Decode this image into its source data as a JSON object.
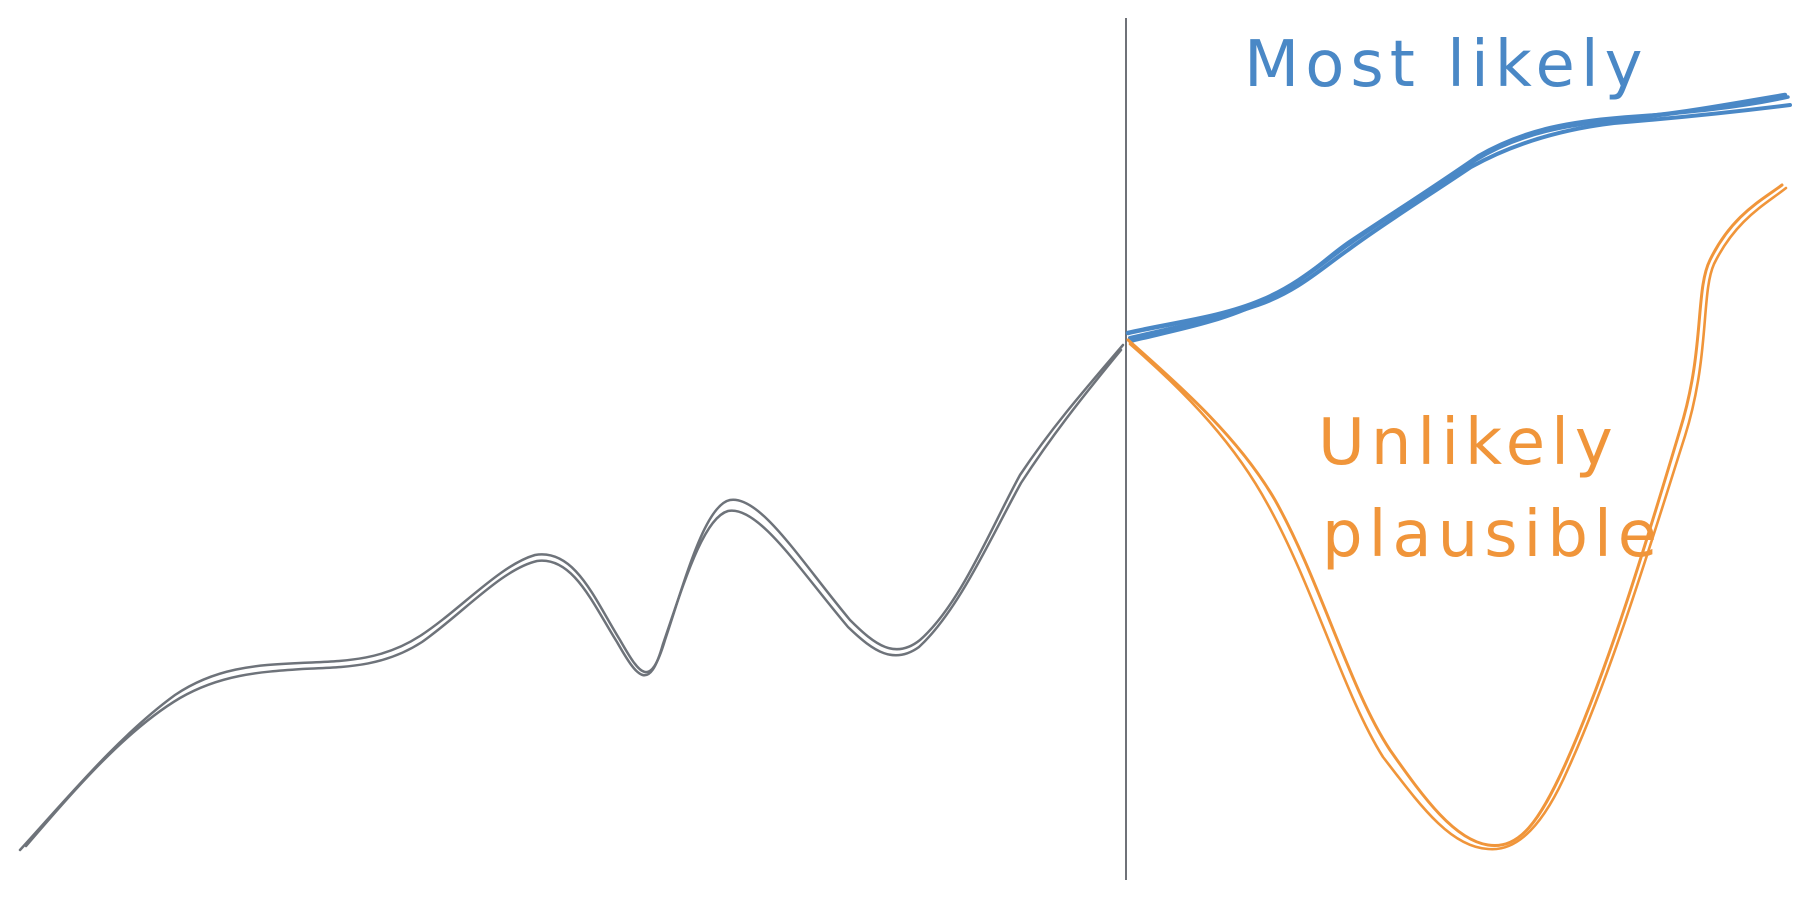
{
  "labels": {
    "most_likely": "Most likely",
    "unlikely_line1": "Unlikely",
    "unlikely_line2": "plausible"
  },
  "colors": {
    "history": "#6e737a",
    "divider": "#5f636a",
    "most_likely": "#4a88c6",
    "unlikely": "#f0953a",
    "background": "#ffffff"
  }
}
